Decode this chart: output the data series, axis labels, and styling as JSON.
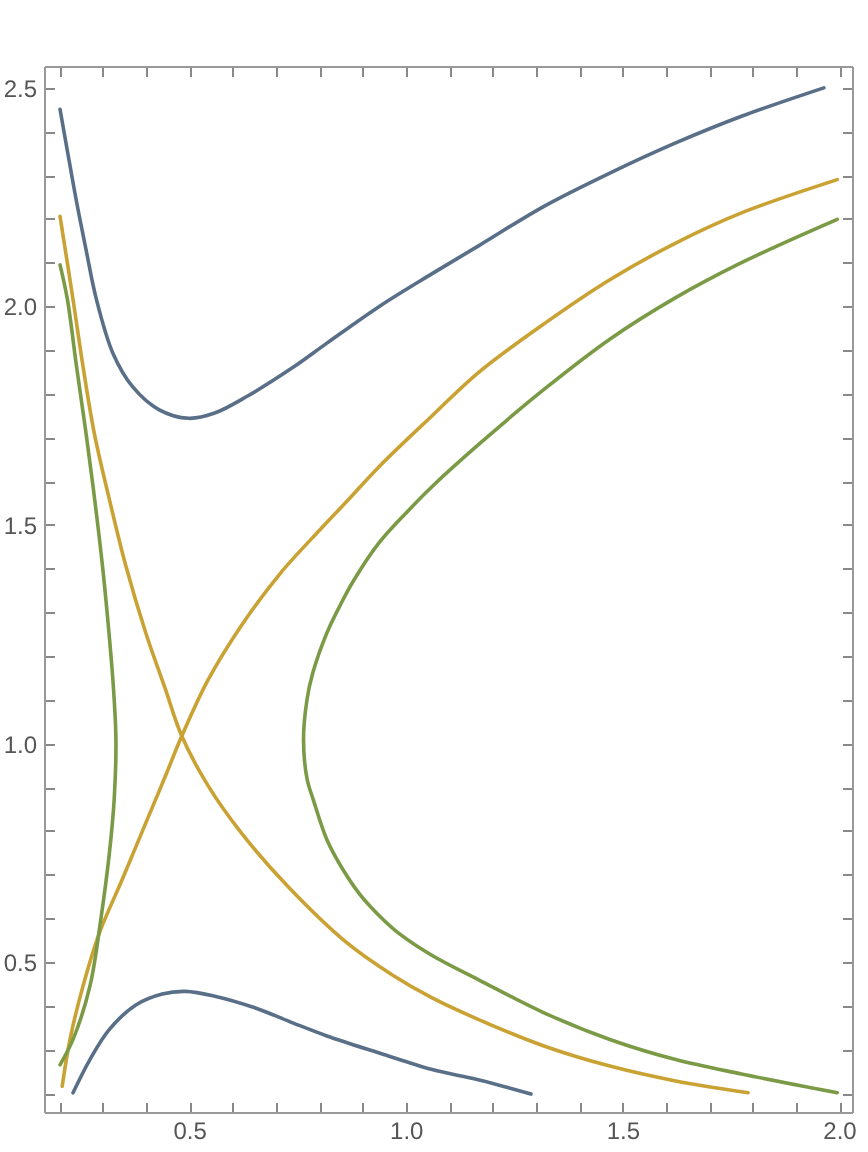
{
  "chart_data": {
    "type": "line",
    "xlim": [
      0.165,
      2.03
    ],
    "ylim": [
      0.157,
      2.55
    ],
    "xticks": [
      {
        "value": 0.2,
        "label": null
      },
      {
        "value": 0.3,
        "label": null
      },
      {
        "value": 0.4,
        "label": null
      },
      0.5,
      {
        "value": 0.6,
        "label": null
      },
      {
        "value": 0.7,
        "label": null
      },
      {
        "value": 0.8,
        "label": null
      },
      {
        "value": 0.9,
        "label": null
      },
      {
        "value": 1,
        "label": "1.0"
      },
      {
        "value": 1.1,
        "label": null
      },
      {
        "value": 1.2,
        "label": null
      },
      {
        "value": 1.3,
        "label": null
      },
      {
        "value": 1.4,
        "label": null
      },
      1.5,
      {
        "value": 1.6,
        "label": null
      },
      {
        "value": 1.7,
        "label": null
      },
      {
        "value": 1.8,
        "label": null
      },
      {
        "value": 1.9,
        "label": null
      },
      {
        "value": 2,
        "label": "2.0"
      }
    ],
    "yticks": [
      {
        "value": 0.2,
        "label": null
      },
      {
        "value": 0.3,
        "label": null
      },
      {
        "value": 0.4,
        "label": null
      },
      0.5,
      {
        "value": 0.6,
        "label": null
      },
      {
        "value": 0.7,
        "label": null
      },
      {
        "value": 0.8,
        "label": null
      },
      {
        "value": 0.9,
        "label": null
      },
      {
        "value": 1,
        "label": "1.0"
      },
      {
        "value": 1.1,
        "label": null
      },
      {
        "value": 1.2,
        "label": null
      },
      {
        "value": 1.3,
        "label": null
      },
      {
        "value": 1.4,
        "label": null
      },
      1.5,
      {
        "value": 1.6,
        "label": null
      },
      {
        "value": 1.7,
        "label": null
      },
      {
        "value": 1.8,
        "label": null
      },
      {
        "value": 1.9,
        "label": null
      },
      {
        "value": 2,
        "label": "2.0"
      },
      {
        "value": 2.1,
        "label": null
      },
      {
        "value": 2.2,
        "label": null
      },
      {
        "value": 2.3,
        "label": null
      },
      {
        "value": 2.4,
        "label": null
      },
      2.5
    ],
    "series": [
      {
        "color": "#596f88",
        "x": [
          0.202,
          0.22,
          0.24,
          0.262,
          0.286,
          0.324,
          0.369,
          0.43,
          0.499,
          0.559,
          0.635,
          0.739,
          0.818,
          0.939,
          1.061,
          1.167,
          1.319,
          1.471,
          1.623,
          1.775,
          1.965
        ],
        "values": [
          2.451,
          2.35,
          2.24,
          2.13,
          2.016,
          1.893,
          1.817,
          1.764,
          1.744,
          1.756,
          1.795,
          1.86,
          1.916,
          2.0,
          2.075,
          2.138,
          2.229,
          2.305,
          2.374,
          2.435,
          2.5
        ]
      },
      {
        "color": "#596f88",
        "x": [
          0.232,
          0.271,
          0.316,
          0.377,
          0.438,
          0.491,
          0.559,
          0.65,
          0.739,
          0.818,
          0.939,
          1.061,
          1.167,
          1.289
        ],
        "values": [
          0.201,
          0.277,
          0.346,
          0.402,
          0.427,
          0.433,
          0.422,
          0.396,
          0.361,
          0.331,
          0.292,
          0.254,
          0.231,
          0.198
        ]
      },
      {
        "color": "#c9a233",
        "x": [
          0.202,
          0.232,
          0.255,
          0.281,
          0.316,
          0.354,
          0.4,
          0.445,
          0.483,
          0.544,
          0.62,
          0.727,
          0.863,
          0.97,
          1.061,
          1.167,
          1.319,
          1.471,
          1.623,
          1.79
        ],
        "values": [
          2.206,
          2.016,
          1.863,
          1.71,
          1.558,
          1.406,
          1.253,
          1.125,
          1.017,
          0.903,
          0.796,
          0.674,
          0.545,
          0.47,
          0.418,
          0.369,
          0.308,
          0.262,
          0.228,
          0.201
        ]
      },
      {
        "color": "#c9a233",
        "x": [
          0.207,
          0.225,
          0.255,
          0.293,
          0.346,
          0.407,
          0.445,
          0.483,
          0.544,
          0.62,
          0.711,
          0.802,
          0.863,
          0.939,
          1.061,
          1.167,
          1.319,
          1.471,
          1.623,
          1.775,
          1.996
        ],
        "values": [
          0.216,
          0.323,
          0.445,
          0.567,
          0.69,
          0.835,
          0.925,
          1.017,
          1.146,
          1.269,
          1.39,
          1.489,
          1.553,
          1.634,
          1.75,
          1.848,
          1.96,
          2.061,
          2.145,
          2.214,
          2.29
        ]
      },
      {
        "color": "#7b9a45",
        "x": [
          0.202,
          0.219,
          0.24,
          0.262,
          0.282,
          0.3,
          0.315,
          0.325,
          0.331,
          0.327,
          0.316,
          0.296,
          0.271,
          0.232,
          0.202
        ],
        "values": [
          2.095,
          2.016,
          1.863,
          1.71,
          1.558,
          1.406,
          1.253,
          1.131,
          1.009,
          0.872,
          0.75,
          0.597,
          0.445,
          0.323,
          0.265
        ]
      },
      {
        "color": "#7b9a45",
        "x": [
          1.996,
          1.775,
          1.623,
          1.471,
          1.319,
          1.167,
          1.061,
          1.008,
          0.939,
          0.878,
          0.848,
          0.818,
          0.785,
          0.772,
          0.764,
          0.772,
          0.787,
          0.818,
          0.856,
          0.894,
          0.94,
          0.985,
          1.061,
          1.167,
          1.319,
          1.471,
          1.623,
          1.775,
          1.996
        ],
        "values": [
          2.199,
          2.1,
          2.02,
          1.925,
          1.81,
          1.683,
          1.588,
          1.535,
          1.46,
          1.37,
          1.315,
          1.253,
          1.16,
          1.1,
          1.009,
          0.92,
          0.87,
          0.78,
          0.71,
          0.655,
          0.605,
          0.565,
          0.515,
          0.46,
          0.384,
          0.323,
          0.277,
          0.244,
          0.201
        ]
      }
    ]
  }
}
